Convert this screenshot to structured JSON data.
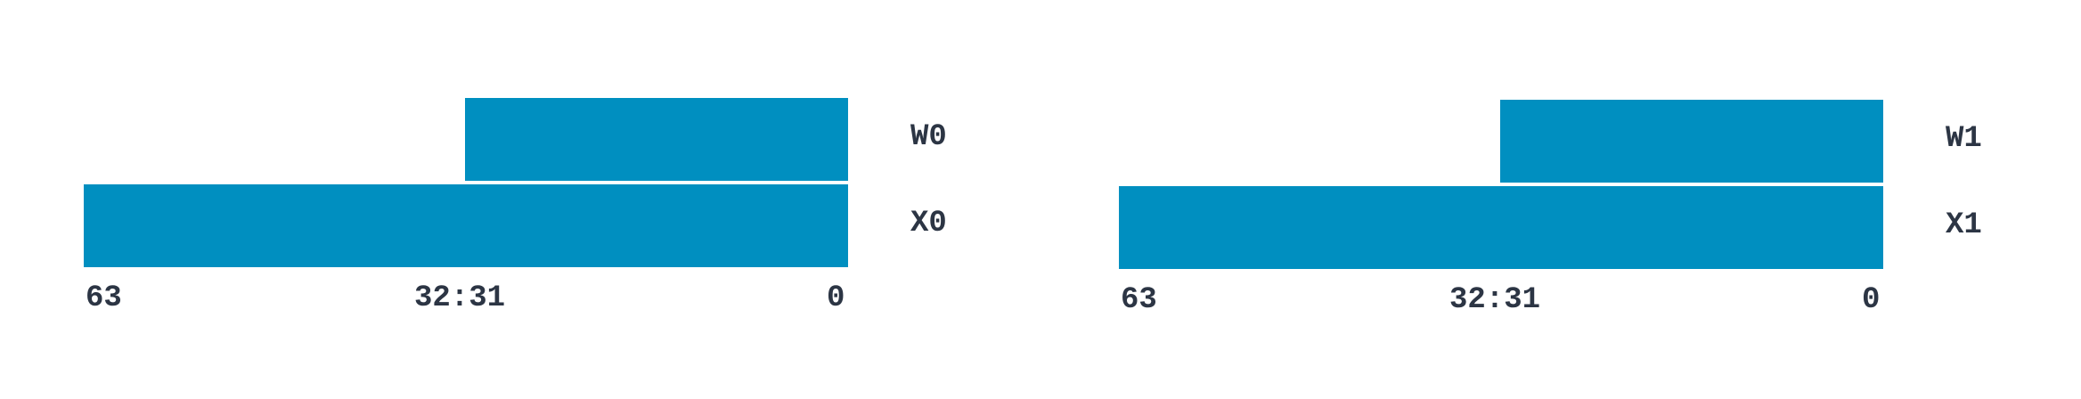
{
  "diagrams": [
    {
      "word_register": "W0",
      "extended_register": "X0",
      "bit_high": "63",
      "bit_mid": "32:31",
      "bit_low": "0"
    },
    {
      "word_register": "W1",
      "extended_register": "X1",
      "bit_high": "63",
      "bit_mid": "32:31",
      "bit_low": "0"
    }
  ],
  "colors": {
    "bar_fill": "#008fc0",
    "label_text": "#2c3544"
  }
}
